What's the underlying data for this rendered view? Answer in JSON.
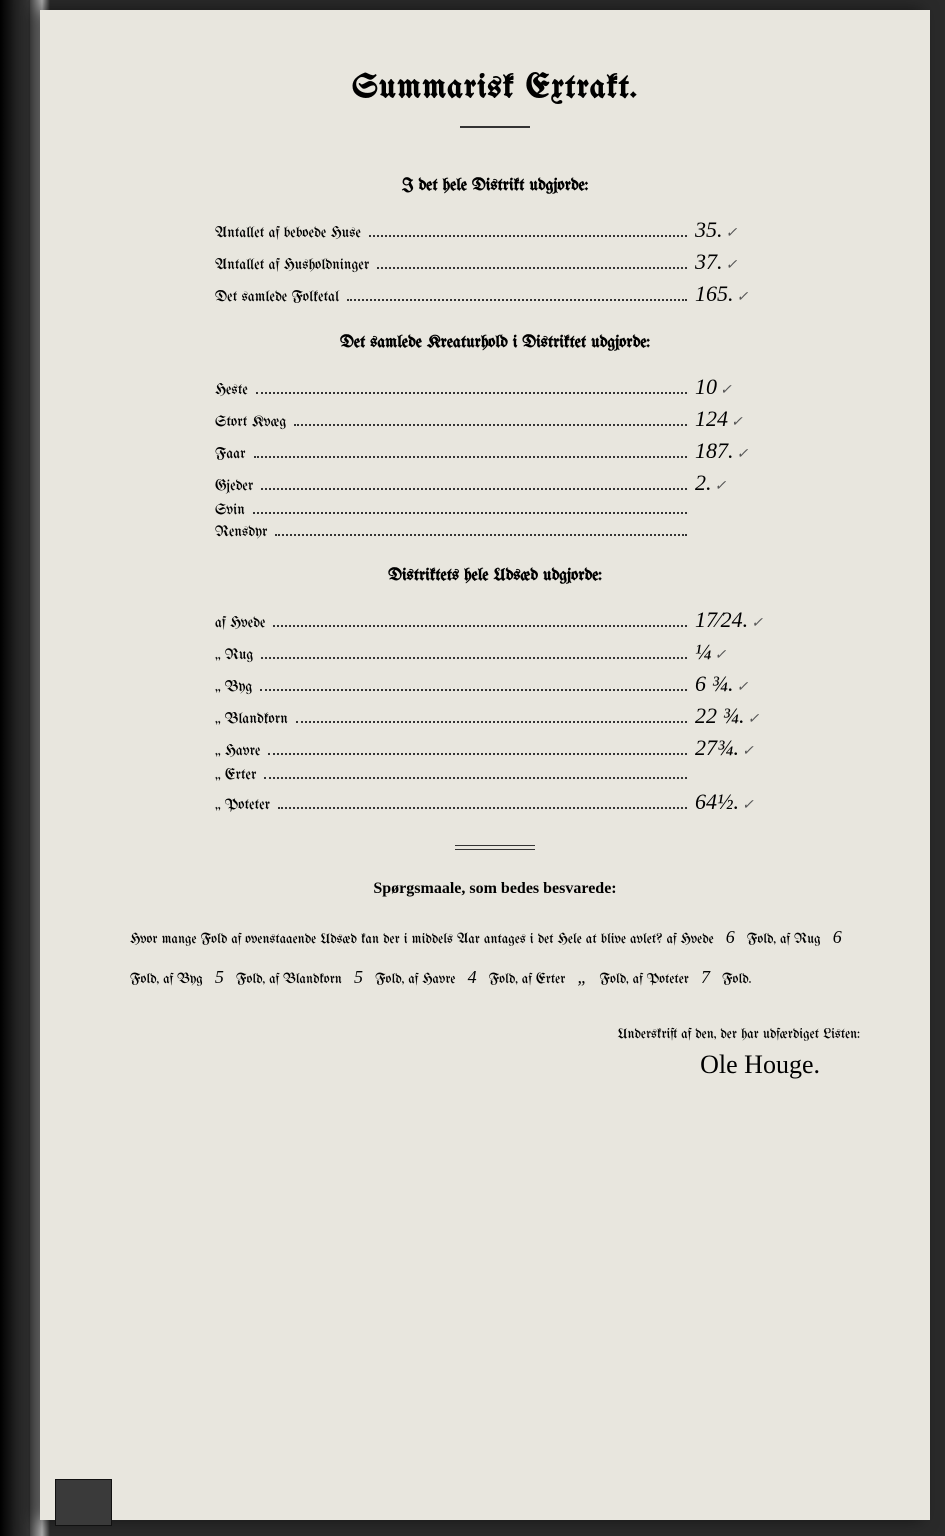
{
  "title": "Summarisk Extrakt.",
  "section1": {
    "heading": "I det hele Distrikt udgjorde:",
    "rows": [
      {
        "label": "Antallet af beboede Huse",
        "value": "35.",
        "check": "✓"
      },
      {
        "label": "Antallet af Husholdninger",
        "value": "37.",
        "check": "✓"
      },
      {
        "label": "Det samlede Folketal",
        "value": "165.",
        "check": "✓"
      }
    ]
  },
  "section2": {
    "heading": "Det samlede Kreaturhold i Distriktet udgjorde:",
    "rows": [
      {
        "label": "Heste",
        "value": "10",
        "check": "✓"
      },
      {
        "label": "Stort Kvæg",
        "value": "124",
        "check": "✓"
      },
      {
        "label": "Faar",
        "value": "187.",
        "check": "✓"
      },
      {
        "label": "Gjeder",
        "value": "2.",
        "check": "✓"
      },
      {
        "label": "Svin",
        "value": "",
        "check": ""
      },
      {
        "label": "Rensdyr",
        "value": "",
        "check": ""
      }
    ]
  },
  "section3": {
    "heading": "Distriktets hele Udsæd udgjorde:",
    "rows": [
      {
        "label": "af Hvede",
        "value": "17⁄24.",
        "check": "✓"
      },
      {
        "label": "„ Rug",
        "value": "¼",
        "check": "✓"
      },
      {
        "label": "„ Byg",
        "value": "6 ¾.",
        "check": "✓"
      },
      {
        "label": "„ Blandkorn",
        "value": "22 ¾.",
        "check": "✓"
      },
      {
        "label": "„ Havre",
        "value": "27¾.",
        "check": "✓"
      },
      {
        "label": "„ Erter",
        "value": "",
        "check": ""
      },
      {
        "label": "„ Poteter",
        "value": "64½.",
        "check": "✓"
      }
    ]
  },
  "questions": {
    "heading": "Spørgsmaale, som bedes besvarede:",
    "intro": "Hvor mange Fold af ovenstaaende Udsæd kan der i middels Aar antages i det Hele at blive avlet?",
    "items": [
      {
        "crop": "af Hvede",
        "val": "6",
        "unit": "Fold,"
      },
      {
        "crop": "af Rug",
        "val": "6",
        "unit": "Fold,"
      },
      {
        "crop": "af Byg",
        "val": "5",
        "unit": "Fold,"
      },
      {
        "crop": "af Blandkorn",
        "val": "5",
        "unit": "Fold,"
      },
      {
        "crop": "af Havre",
        "val": "4",
        "unit": "Fold,"
      },
      {
        "crop": "af Erter",
        "val": "„",
        "unit": "Fold,"
      },
      {
        "crop": "af Poteter",
        "val": "7",
        "unit": "Fold."
      }
    ]
  },
  "sig": {
    "label": "Underskrift af den, der har udfærdiget Listen:",
    "name": "Ole Houge."
  }
}
